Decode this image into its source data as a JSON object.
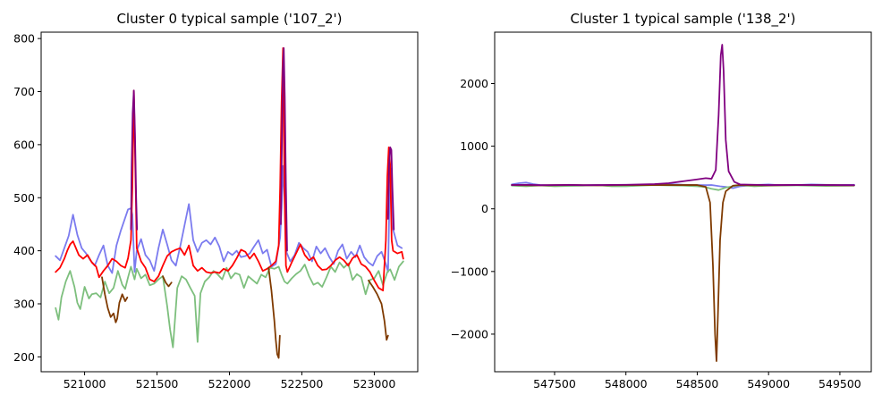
{
  "chart_data": [
    {
      "type": "line",
      "title": "Cluster 0 typical sample ('107_2')",
      "xlabel": "",
      "ylabel": "",
      "xlim": [
        520700,
        523300
      ],
      "ylim": [
        172,
        812
      ],
      "xticks": [
        521000,
        521500,
        522000,
        522500,
        523000
      ],
      "xtick_labels": [
        "521000",
        "521500",
        "522000",
        "522500",
        "523000"
      ],
      "yticks": [
        200,
        300,
        400,
        500,
        600,
        700,
        800
      ],
      "ytick_labels": [
        "200",
        "300",
        "400",
        "500",
        "600",
        "700",
        "800"
      ],
      "grid": false,
      "series": [
        {
          "color": "#7b7bef",
          "x": [
            520800,
            520830,
            520860,
            520890,
            520920,
            520950,
            520980,
            521010,
            521040,
            521070,
            521100,
            521130,
            521160,
            521190,
            521220,
            521250,
            521280,
            521300,
            521320,
            521330,
            521345,
            521360,
            521390,
            521420,
            521450,
            521480,
            521510,
            521540,
            521570,
            521600,
            521630,
            521660,
            521690,
            521720,
            521750,
            521780,
            521810,
            521840,
            521870,
            521900,
            521930,
            521960,
            521990,
            522020,
            522050,
            522080,
            522110,
            522140,
            522170,
            522200,
            522230,
            522260,
            522290,
            522320,
            522350,
            522360,
            522370,
            522380,
            522390,
            522420,
            522450,
            522480,
            522510,
            522540,
            522570,
            522600,
            522630,
            522660,
            522690,
            522720,
            522750,
            522780,
            522810,
            522840,
            522870,
            522900,
            522930,
            522960,
            522990,
            523020,
            523050,
            523080,
            523095,
            523105,
            523115,
            523130,
            523160,
            523190
          ],
          "y": [
            390,
            382,
            405,
            428,
            468,
            430,
            405,
            395,
            382,
            372,
            392,
            410,
            372,
            358,
            410,
            438,
            462,
            478,
            480,
            468,
            360,
            400,
            422,
            392,
            382,
            362,
            405,
            440,
            412,
            382,
            372,
            408,
            448,
            488,
            420,
            398,
            415,
            420,
            412,
            425,
            408,
            380,
            398,
            392,
            400,
            388,
            390,
            395,
            408,
            420,
            395,
            402,
            370,
            375,
            425,
            480,
            560,
            500,
            400,
            380,
            392,
            415,
            405,
            398,
            380,
            408,
            395,
            405,
            388,
            375,
            400,
            412,
            385,
            398,
            388,
            410,
            388,
            378,
            372,
            390,
            398,
            375,
            360,
            500,
            555,
            440,
            410,
            405
          ]
        },
        {
          "color": "#7dbf7d",
          "x": [
            520800,
            520820,
            520840,
            520870,
            520900,
            520930,
            520950,
            520970,
            521000,
            521030,
            521050,
            521080,
            521110,
            521140,
            521170,
            521200,
            521230,
            521260,
            521280,
            521300,
            521320,
            521345,
            521360,
            521390,
            521420,
            521450,
            521480,
            521510,
            521540,
            521570,
            521590,
            521610,
            521640,
            521670,
            521700,
            521730,
            521760,
            521780,
            521800,
            521830,
            521860,
            521890,
            521920,
            521950,
            521980,
            522010,
            522040,
            522070,
            522100,
            522130,
            522160,
            522190,
            522220,
            522250,
            522280,
            522310,
            522340,
            522360,
            522380,
            522400,
            522430,
            522460,
            522490,
            522520,
            522550,
            522580,
            522610,
            522640,
            522670,
            522700,
            522730,
            522760,
            522790,
            522820,
            522850,
            522880,
            522910,
            522940,
            522970,
            523000,
            523030,
            523060,
            523090,
            523110,
            523140,
            523170,
            523200
          ],
          "y": [
            292,
            270,
            312,
            342,
            362,
            332,
            302,
            290,
            332,
            310,
            318,
            320,
            312,
            342,
            320,
            330,
            362,
            336,
            328,
            350,
            370,
            346,
            366,
            348,
            355,
            335,
            338,
            346,
            352,
            296,
            252,
            218,
            330,
            352,
            346,
            330,
            315,
            228,
            320,
            342,
            350,
            362,
            355,
            346,
            368,
            348,
            358,
            355,
            330,
            352,
            345,
            338,
            355,
            350,
            368,
            366,
            370,
            355,
            342,
            338,
            348,
            356,
            362,
            374,
            352,
            336,
            340,
            332,
            350,
            370,
            360,
            378,
            368,
            376,
            345,
            356,
            350,
            318,
            345,
            348,
            362,
            335,
            360,
            365,
            345,
            370,
            380
          ]
        },
        {
          "color": "#ff0000",
          "x": [
            520800,
            520830,
            520860,
            520880,
            520900,
            520920,
            520940,
            520960,
            520990,
            521020,
            521050,
            521080,
            521100,
            521130,
            521160,
            521190,
            521220,
            521250,
            521280,
            521300,
            521320,
            521330,
            521340,
            521350,
            521360,
            521390,
            521420,
            521450,
            521480,
            521510,
            521540,
            521570,
            521600,
            521630,
            521660,
            521690,
            521720,
            521750,
            521780,
            521810,
            521840,
            521870,
            521900,
            521930,
            521960,
            521990,
            522020,
            522050,
            522080,
            522110,
            522140,
            522170,
            522200,
            522230,
            522260,
            522290,
            522320,
            522340,
            522350,
            522360,
            522370,
            522380,
            522390,
            522400,
            522430,
            522460,
            522490,
            522520,
            522550,
            522580,
            522610,
            522640,
            522670,
            522700,
            522730,
            522760,
            522790,
            522820,
            522850,
            522880,
            522910,
            522940,
            522970,
            523000,
            523030,
            523060,
            523080,
            523090,
            523100,
            523110,
            523120,
            523130,
            523160,
            523190,
            523200
          ],
          "y": [
            360,
            368,
            385,
            400,
            412,
            418,
            405,
            392,
            385,
            392,
            378,
            370,
            350,
            362,
            372,
            385,
            380,
            372,
            368,
            386,
            420,
            520,
            702,
            560,
            405,
            380,
            368,
            346,
            342,
            352,
            372,
            390,
            398,
            402,
            405,
            392,
            410,
            372,
            362,
            368,
            360,
            358,
            360,
            358,
            366,
            362,
            372,
            386,
            402,
            398,
            385,
            395,
            380,
            362,
            366,
            372,
            380,
            410,
            520,
            680,
            782,
            520,
            372,
            360,
            378,
            395,
            412,
            392,
            382,
            388,
            372,
            364,
            365,
            372,
            382,
            388,
            382,
            372,
            386,
            392,
            375,
            370,
            360,
            344,
            330,
            325,
            420,
            540,
            595,
            560,
            420,
            400,
            395,
            398,
            385
          ]
        },
        {
          "color": "#7f3a00",
          "x": [
            521120,
            521140,
            521160,
            521180,
            521200,
            521215,
            521225,
            521240,
            521260,
            521280,
            521295
          ],
          "y": [
            350,
            318,
            292,
            275,
            282,
            265,
            272,
            302,
            318,
            305,
            312
          ]
        },
        {
          "color": "#7f3a00",
          "x": [
            521540,
            521560,
            521580,
            521600
          ],
          "y": [
            352,
            340,
            333,
            340
          ]
        },
        {
          "color": "#7f3a00",
          "x": [
            522270,
            522290,
            522310,
            522320,
            522330,
            522340,
            522348
          ],
          "y": [
            368,
            325,
            268,
            232,
            205,
            198,
            240
          ]
        },
        {
          "color": "#7f3a00",
          "x": [
            522960,
            522990,
            523020,
            523050,
            523070,
            523085,
            523095
          ],
          "y": [
            344,
            332,
            318,
            300,
            268,
            232,
            240
          ]
        },
        {
          "color": "#800080",
          "x": [
            521320,
            521325,
            521332,
            521340,
            521348,
            521356,
            521362
          ],
          "y": [
            440,
            560,
            660,
            702,
            620,
            500,
            440
          ]
        },
        {
          "color": "#800080",
          "x": [
            522355,
            522362,
            522368,
            522375,
            522382,
            522390,
            522398
          ],
          "y": [
            450,
            600,
            740,
            782,
            690,
            520,
            400
          ]
        },
        {
          "color": "#800080",
          "x": [
            523095,
            523102,
            523110,
            523118,
            523125,
            523135
          ],
          "y": [
            460,
            560,
            595,
            590,
            520,
            440
          ]
        }
      ]
    },
    {
      "type": "line",
      "title": "Cluster 1 typical sample ('138_2')",
      "xlabel": "",
      "ylabel": "",
      "xlim": [
        547080,
        549720
      ],
      "ylim": [
        -2600,
        2820
      ],
      "xticks": [
        547500,
        548000,
        548500,
        549000,
        549500
      ],
      "xtick_labels": [
        "547500",
        "548000",
        "548500",
        "549000",
        "549500"
      ],
      "yticks": [
        -2000,
        -1000,
        0,
        1000,
        2000
      ],
      "ytick_labels": [
        "−2000",
        "−1000",
        "0",
        "1000",
        "2000"
      ],
      "grid": false,
      "series": [
        {
          "color": "#7b7bef",
          "x": [
            547200,
            547250,
            547300,
            547350,
            547400,
            547500,
            547600,
            547700,
            547800,
            547900,
            548000,
            548100,
            548200,
            548300,
            548400,
            548500,
            548560,
            548600,
            548630,
            548660,
            548700,
            548750,
            548800,
            548900,
            549000,
            549100,
            549200,
            549300,
            549400,
            549500,
            549600
          ],
          "y": [
            390,
            410,
            420,
            395,
            380,
            370,
            385,
            375,
            380,
            370,
            375,
            380,
            390,
            395,
            385,
            380,
            378,
            380,
            370,
            360,
            350,
            330,
            360,
            380,
            390,
            375,
            380,
            390,
            385,
            380,
            385
          ]
        },
        {
          "color": "#7dbf7d",
          "x": [
            547200,
            547300,
            547400,
            547500,
            547600,
            547700,
            547800,
            547900,
            548000,
            548100,
            548200,
            548300,
            548400,
            548500,
            548550,
            548600,
            548650,
            548700,
            548750,
            548800,
            548900,
            549000,
            549200,
            549400,
            549600
          ],
          "y": [
            370,
            360,
            375,
            360,
            365,
            370,
            380,
            360,
            360,
            370,
            380,
            375,
            370,
            360,
            350,
            320,
            300,
            340,
            360,
            380,
            360,
            370,
            375,
            365,
            370
          ]
        },
        {
          "color": "#7f3a00",
          "x": [
            547200,
            547400,
            547600,
            547800,
            548000,
            548200,
            548400,
            548500,
            548560,
            548590,
            548610,
            548625,
            548635,
            548645,
            548660,
            548680,
            548700,
            548750,
            548800,
            549000,
            549200,
            549400,
            549600
          ],
          "y": [
            380,
            375,
            380,
            375,
            380,
            380,
            380,
            380,
            350,
            100,
            -900,
            -2000,
            -2430,
            -1700,
            -500,
            100,
            280,
            370,
            380,
            375,
            380,
            378,
            375
          ]
        },
        {
          "color": "#800080",
          "x": [
            547200,
            547300,
            547400,
            547500,
            547600,
            547700,
            547800,
            547900,
            548000,
            548100,
            548200,
            548300,
            548400,
            548500,
            548560,
            548600,
            548630,
            548650,
            548665,
            548675,
            548685,
            548700,
            548720,
            548760,
            548800,
            548900,
            549000,
            549200,
            549400,
            549600
          ],
          "y": [
            380,
            385,
            378,
            380,
            382,
            378,
            380,
            382,
            385,
            390,
            395,
            410,
            440,
            470,
            490,
            480,
            620,
            1500,
            2450,
            2620,
            2200,
            1100,
            600,
            430,
            390,
            385,
            380,
            382,
            380,
            378
          ]
        }
      ]
    }
  ]
}
